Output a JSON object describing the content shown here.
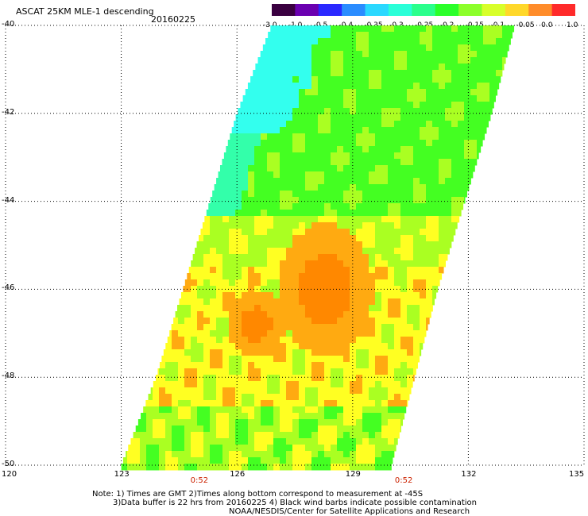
{
  "header": {
    "title": "ASCAT 25KM MLE-1 descending",
    "date": "20160225"
  },
  "colorbar": {
    "labels": [
      "-3.0",
      "-1.0",
      "-0.5",
      "-0.4",
      "-0.35",
      "-0.3",
      "-0.25",
      "-0.2",
      "-0.15",
      "-0.1",
      "-0.05",
      "0.0",
      "1.0"
    ],
    "colors": [
      "#3a0040",
      "#6a00b0",
      "#2a28ff",
      "#2a8cff",
      "#2ad8ff",
      "#2affd8",
      "#2aff8c",
      "#2aff2a",
      "#8cff2a",
      "#d8ff2a",
      "#ffd82a",
      "#ff8c2a",
      "#ff2a2a"
    ]
  },
  "axes": {
    "lat_labels": [
      "-40",
      "-42",
      "-44",
      "-46",
      "-48",
      "-50"
    ],
    "lon_labels": [
      "120",
      "123",
      "126",
      "129",
      "132",
      "135"
    ],
    "lat_range": [
      -50,
      -40
    ],
    "lon_range": [
      120,
      135
    ]
  },
  "times": [
    {
      "label": "0:52",
      "lon": 125.0
    },
    {
      "label": "0:52",
      "lon": 130.3
    }
  ],
  "notes": {
    "line1": "Note: 1) Times are GMT 2)Times along bottom correspond to measurement at -45S",
    "line2": "3)Data buffer is 22 hrs from 20160225 4) Black wind barbs indicate possible contamination",
    "line3": "NOAA/NESDIS/Center for Satellite Applications and Research"
  },
  "swath": {
    "polygon_lonlat": [
      [
        123.0,
        -50
      ],
      [
        123.9,
        -48
      ],
      [
        124.6,
        -46
      ],
      [
        125.3,
        -44
      ],
      [
        126.0,
        -42
      ],
      [
        126.9,
        -40
      ],
      [
        133.2,
        -40
      ],
      [
        132.6,
        -42
      ],
      [
        131.9,
        -44
      ],
      [
        131.2,
        -46
      ],
      [
        130.6,
        -48
      ],
      [
        130.0,
        -50
      ]
    ]
  },
  "palette": {
    "cyan": "#33ffee",
    "teal": "#33ffaa",
    "green": "#44ff22",
    "lime": "#aaff22",
    "yellow": "#ffff22",
    "orange": "#ffaa11",
    "dark_orange": "#ff8800"
  }
}
